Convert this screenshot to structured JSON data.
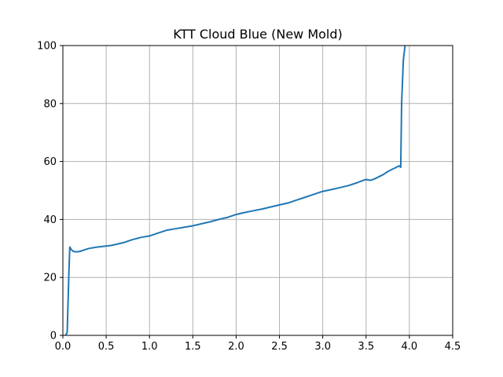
{
  "chart_data": {
    "type": "line",
    "title": "KTT Cloud Blue (New Mold)",
    "xlabel": "",
    "ylabel": "",
    "xlim": [
      0,
      4.5
    ],
    "ylim": [
      0,
      100
    ],
    "xticks": [
      "0.0",
      "0.5",
      "1.0",
      "1.5",
      "2.0",
      "2.5",
      "3.0",
      "3.5",
      "4.0",
      "4.5"
    ],
    "yticks": [
      "0",
      "20",
      "40",
      "60",
      "80",
      "100"
    ],
    "grid": true,
    "series": [
      {
        "color": "#1f77b4",
        "x": [
          0.03,
          0.05,
          0.07,
          0.08,
          0.1,
          0.12,
          0.15,
          0.2,
          0.25,
          0.3,
          0.4,
          0.5,
          0.55,
          0.6,
          0.7,
          0.8,
          0.9,
          1.0,
          1.1,
          1.2,
          1.3,
          1.4,
          1.5,
          1.6,
          1.7,
          1.8,
          1.9,
          2.0,
          2.1,
          2.2,
          2.3,
          2.4,
          2.5,
          2.6,
          2.7,
          2.8,
          2.9,
          3.0,
          3.1,
          3.2,
          3.3,
          3.4,
          3.45,
          3.5,
          3.55,
          3.6,
          3.7,
          3.75,
          3.8,
          3.85,
          3.88,
          3.9,
          3.91,
          3.93,
          3.95
        ],
        "y": [
          0,
          1,
          22,
          30.5,
          29.5,
          29,
          28.8,
          29,
          29.5,
          30,
          30.5,
          30.8,
          31,
          31.3,
          32,
          33,
          33.8,
          34.3,
          35.3,
          36.3,
          36.8,
          37.3,
          37.8,
          38.5,
          39.2,
          40,
          40.7,
          41.7,
          42.4,
          43,
          43.6,
          44.3,
          45,
          45.7,
          46.7,
          47.7,
          48.7,
          49.7,
          50.3,
          51,
          51.7,
          52.7,
          53.3,
          53.8,
          53.5,
          54,
          55.5,
          56.5,
          57.3,
          58,
          58.5,
          58,
          80,
          95,
          100
        ]
      }
    ]
  }
}
